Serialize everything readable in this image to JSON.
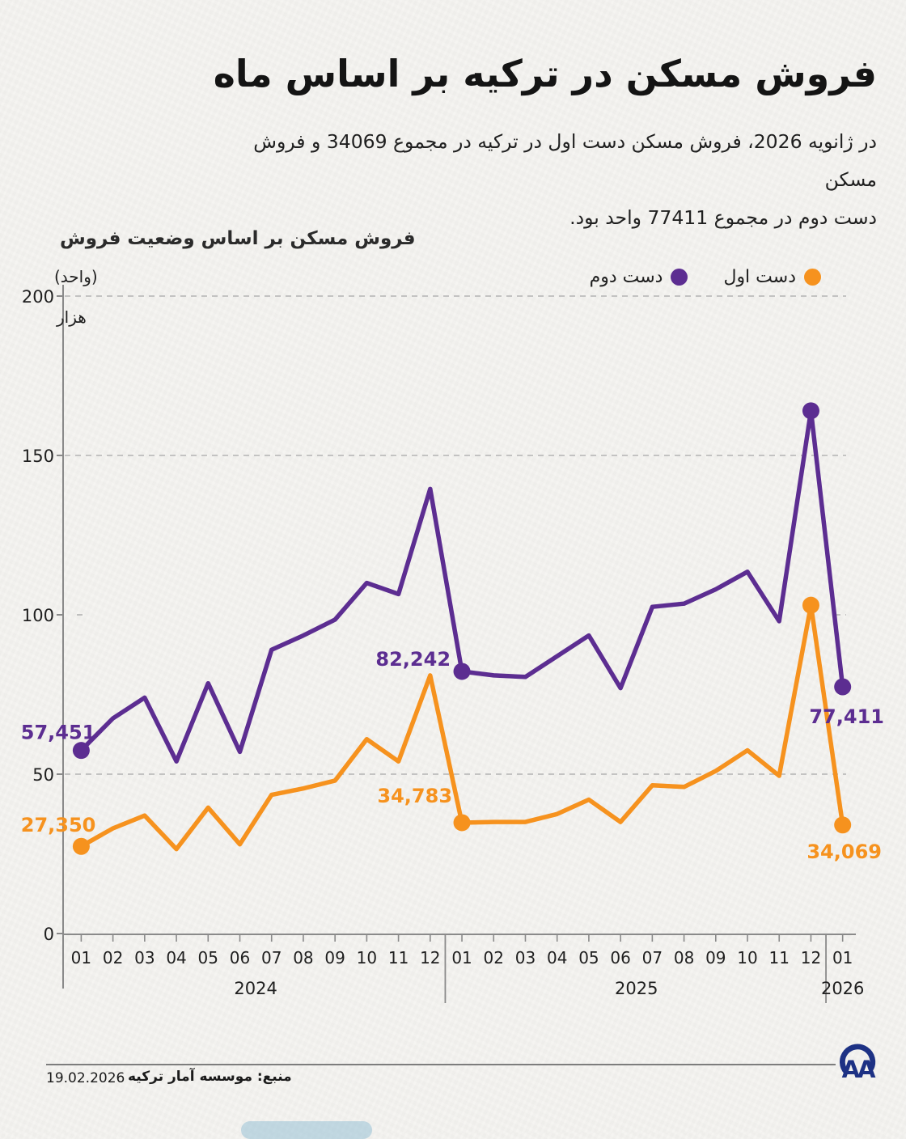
{
  "header": {
    "title": "فروش مسکن در ترکیه بر اساس ماه",
    "subtitle_lines": [
      "در ژانویه 2026، فروش مسکن دست اول در ترکیه در مجموع 34069 و فروش مسکن",
      "دست دوم در مجموع 77411 واحد بود."
    ]
  },
  "legend": {
    "items": [
      {
        "label": "دست اول",
        "color": "#f6921e"
      },
      {
        "label": "دست دوم",
        "color": "#5c2d91"
      }
    ]
  },
  "chart_data": {
    "type": "line",
    "title": "فروش مسکن بر اساس وضعیت فروش",
    "unit_label_top": "(واحد)",
    "unit_label_bottom": "هزار",
    "ylabel": "هزار واحد",
    "ylim_thousands": [
      0,
      200
    ],
    "y_ticks_thousands": [
      0,
      50,
      100,
      150,
      200
    ],
    "grid": "horizontal dashed, 100k line stubbed only",
    "legend_position": "top-right",
    "x_tick_labels": [
      "01",
      "02",
      "03",
      "04",
      "05",
      "06",
      "07",
      "08",
      "09",
      "10",
      "11",
      "12",
      "01",
      "02",
      "03",
      "04",
      "05",
      "06",
      "07",
      "08",
      "09",
      "10",
      "11",
      "12",
      "01"
    ],
    "year_groups": [
      {
        "label": "2024",
        "months": 12
      },
      {
        "label": "2025",
        "months": 12
      },
      {
        "label": "2026",
        "months": 1
      }
    ],
    "series": [
      {
        "name": "دست دوم",
        "color": "#5c2d91",
        "values": [
          57451,
          67500,
          74000,
          54000,
          78500,
          57000,
          89000,
          93500,
          98500,
          110000,
          106500,
          139500,
          82242,
          81000,
          80500,
          87000,
          93500,
          77000,
          102500,
          103500,
          108000,
          113500,
          98000,
          164000,
          77411
        ]
      },
      {
        "name": "دست اول",
        "color": "#f6921e",
        "values": [
          27350,
          33000,
          37000,
          26500,
          39500,
          28000,
          43500,
          45500,
          48000,
          61000,
          54000,
          81000,
          34783,
          35000,
          35000,
          37500,
          42000,
          35000,
          46500,
          46000,
          51000,
          57500,
          49500,
          103000,
          34069
        ]
      }
    ],
    "marker_indices": [
      0,
      12,
      23,
      24
    ],
    "point_labels": [
      {
        "series": 0,
        "index": 0,
        "text": "57,451"
      },
      {
        "series": 1,
        "index": 0,
        "text": "27,350"
      },
      {
        "series": 0,
        "index": 12,
        "text": "82,242"
      },
      {
        "series": 1,
        "index": 12,
        "text": "34,783"
      },
      {
        "series": 0,
        "index": 24,
        "text": "77,411"
      },
      {
        "series": 1,
        "index": 24,
        "text": "34,069"
      }
    ]
  },
  "footer": {
    "date": "19.02.2026",
    "source": "منبع: موسسه آمار ترکیه",
    "logo": "AA"
  }
}
